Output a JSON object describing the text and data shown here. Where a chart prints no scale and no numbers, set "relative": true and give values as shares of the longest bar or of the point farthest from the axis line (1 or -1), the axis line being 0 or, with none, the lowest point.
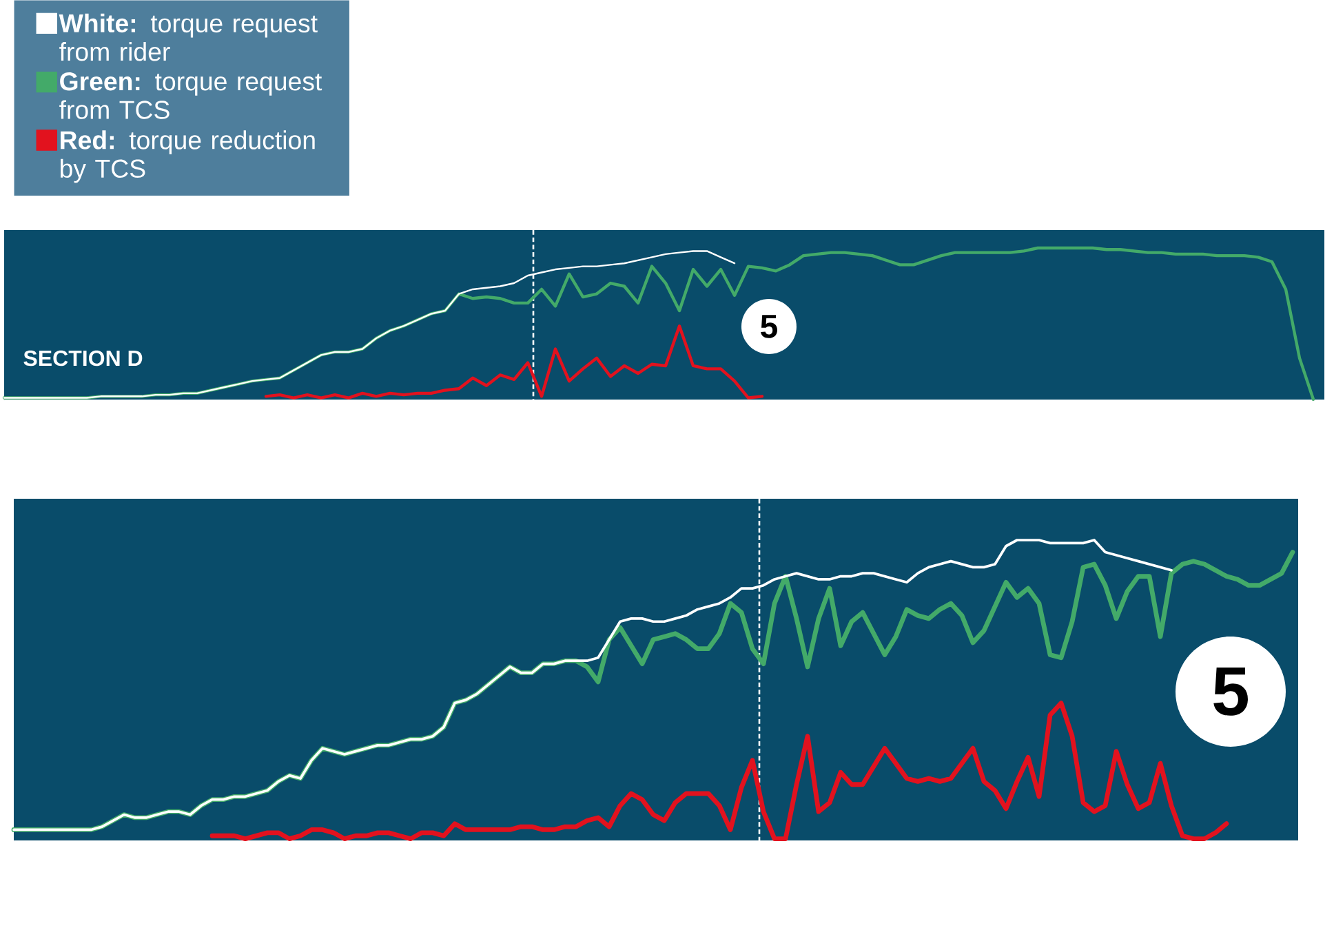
{
  "chart_data": [
    {
      "type": "line",
      "title": "SECTION D",
      "relative": true,
      "legend": "top left",
      "categories": [
        null,
        null,
        null,
        null,
        null,
        null,
        null,
        null,
        null,
        null,
        null,
        null,
        null,
        null,
        null,
        null,
        null,
        null,
        null,
        null,
        null,
        null,
        null,
        null,
        null,
        null,
        null,
        null,
        null,
        null,
        null,
        null,
        null,
        null,
        null,
        null,
        null,
        null,
        null,
        null,
        null,
        null,
        null,
        null,
        null,
        null,
        null,
        null,
        null,
        null,
        null,
        null,
        null,
        null,
        null,
        null,
        null,
        null,
        null,
        null,
        null,
        null,
        null,
        null,
        null,
        null,
        null,
        null,
        null,
        null,
        null,
        null,
        null,
        null,
        null,
        null,
        null,
        null,
        null,
        null,
        null,
        null,
        null,
        null,
        null,
        null,
        null,
        null,
        null,
        null,
        null,
        null,
        null,
        null,
        null,
        null
      ],
      "series": [
        {
          "name": "**White:** torque request from rider",
          "color": "#ffffff",
          "values": [
            0.02,
            0.02,
            0.02,
            0.02,
            0.02,
            0.02,
            0.02,
            0.03,
            0.03,
            0.03,
            0.03,
            0.04,
            0.04,
            0.05,
            0.05,
            0.07,
            0.09,
            0.11,
            0.13,
            0.14,
            0.15,
            0.2,
            0.25,
            0.3,
            0.32,
            0.32,
            0.34,
            0.41,
            0.46,
            0.49,
            0.53,
            0.57,
            0.59,
            0.7,
            0.73,
            0.74,
            0.75,
            0.77,
            0.82,
            0.84,
            0.86,
            0.87,
            0.88,
            0.88,
            0.89,
            0.9,
            0.92,
            0.94,
            0.96,
            0.97,
            0.98,
            0.98,
            0.94,
            0.9,
            null,
            null,
            null,
            null,
            null,
            null,
            null,
            null,
            null,
            null,
            null,
            null,
            null,
            null,
            null,
            null,
            null,
            null,
            null,
            null,
            null,
            null,
            null,
            null,
            null,
            null,
            null,
            null,
            null,
            null,
            null,
            null,
            null,
            null,
            null,
            null,
            null,
            null,
            null,
            null,
            null,
            null
          ]
        },
        {
          "name": "**Green:** torque request from TCS",
          "color": "#43aa69",
          "values": [
            0.02,
            0.02,
            0.02,
            0.02,
            0.02,
            0.02,
            0.02,
            0.03,
            0.03,
            0.03,
            0.03,
            0.04,
            0.04,
            0.05,
            0.05,
            0.07,
            0.09,
            0.11,
            0.13,
            0.14,
            0.15,
            0.2,
            0.25,
            0.3,
            0.32,
            0.32,
            0.34,
            0.41,
            0.46,
            0.49,
            0.53,
            0.57,
            0.59,
            0.7,
            0.67,
            0.68,
            0.67,
            0.64,
            0.64,
            0.73,
            0.62,
            0.83,
            0.68,
            0.7,
            0.77,
            0.75,
            0.64,
            0.88,
            0.77,
            0.59,
            0.86,
            0.75,
            0.86,
            0.69,
            0.88,
            0.87,
            0.85,
            0.89,
            0.95,
            0.96,
            0.97,
            0.97,
            0.96,
            0.95,
            0.92,
            0.89,
            0.89,
            0.92,
            0.95,
            0.97,
            0.97,
            0.97,
            0.97,
            0.97,
            0.98,
            1.0,
            1.0,
            1.0,
            1.0,
            1.0,
            0.99,
            0.99,
            0.98,
            0.97,
            0.97,
            0.96,
            0.96,
            0.96,
            0.95,
            0.95,
            0.95,
            0.94,
            0.91,
            0.73,
            0.28,
            0.01
          ]
        },
        {
          "name": "**Red:** torque reduction by TCS",
          "color": "#e2121e",
          "values": [
            null,
            null,
            null,
            null,
            null,
            null,
            null,
            null,
            null,
            null,
            null,
            null,
            null,
            null,
            null,
            null,
            null,
            null,
            null,
            0.03,
            0.04,
            0.02,
            0.04,
            0.02,
            0.04,
            0.02,
            0.05,
            0.03,
            0.05,
            0.04,
            0.05,
            0.05,
            0.07,
            0.08,
            0.15,
            0.1,
            0.17,
            0.14,
            0.25,
            0.03,
            0.34,
            0.13,
            0.21,
            0.28,
            0.16,
            0.23,
            0.18,
            0.24,
            0.23,
            0.49,
            0.23,
            0.21,
            0.21,
            0.13,
            0.02,
            0.03,
            null,
            null,
            null,
            null,
            null,
            null,
            null,
            null,
            null,
            null,
            null,
            null,
            null,
            null,
            null,
            null,
            null,
            null,
            null,
            null,
            null,
            null,
            null,
            null,
            null,
            null,
            null,
            null,
            null,
            null,
            null,
            null,
            null,
            null,
            null,
            null,
            null,
            null,
            null,
            null
          ]
        }
      ],
      "annotations": [
        "5"
      ]
    },
    {
      "type": "line",
      "relative": true,
      "categories": [
        null,
        null,
        null,
        null,
        null,
        null,
        null,
        null,
        null,
        null,
        null,
        null,
        null,
        null,
        null,
        null,
        null,
        null,
        null,
        null,
        null,
        null,
        null,
        null,
        null,
        null,
        null,
        null,
        null,
        null,
        null,
        null,
        null,
        null,
        null,
        null,
        null,
        null,
        null,
        null,
        null,
        null,
        null,
        null,
        null,
        null,
        null,
        null,
        null,
        null,
        null,
        null,
        null,
        null,
        null,
        null,
        null,
        null,
        null,
        null,
        null,
        null,
        null,
        null,
        null,
        null,
        null,
        null,
        null,
        null,
        null,
        null,
        null,
        null,
        null,
        null,
        null,
        null,
        null,
        null,
        null,
        null,
        null,
        null,
        null,
        null,
        null,
        null,
        null,
        null,
        null,
        null,
        null,
        null,
        null,
        null,
        null,
        null,
        null,
        null,
        null,
        null,
        null,
        null,
        null,
        null,
        null,
        null,
        null,
        null,
        null,
        null,
        null,
        null,
        null,
        null,
        null
      ],
      "series": [
        {
          "color": "#ffffff",
          "values": [
            0.04,
            0.04,
            0.04,
            0.04,
            0.04,
            0.04,
            0.04,
            0.04,
            0.05,
            0.07,
            0.09,
            0.08,
            0.08,
            0.09,
            0.1,
            0.1,
            0.09,
            0.12,
            0.14,
            0.14,
            0.15,
            0.15,
            0.16,
            0.17,
            0.2,
            0.22,
            0.21,
            0.27,
            0.31,
            0.3,
            0.29,
            0.3,
            0.31,
            0.32,
            0.32,
            0.33,
            0.34,
            0.34,
            0.35,
            0.38,
            0.46,
            0.47,
            0.49,
            0.52,
            0.55,
            0.58,
            0.56,
            0.56,
            0.59,
            0.59,
            0.6,
            0.6,
            0.6,
            0.61,
            0.67,
            0.73,
            0.74,
            0.74,
            0.73,
            0.73,
            0.74,
            0.75,
            0.77,
            0.78,
            0.79,
            0.81,
            0.84,
            0.84,
            0.85,
            0.87,
            0.88,
            0.89,
            0.88,
            0.87,
            0.87,
            0.88,
            0.88,
            0.89,
            0.89,
            0.88,
            0.87,
            0.86,
            0.89,
            0.91,
            0.92,
            0.93,
            0.92,
            0.91,
            0.91,
            0.92,
            0.98,
            1.0,
            1.0,
            1.0,
            0.99,
            0.99,
            0.99,
            0.99,
            1.0,
            0.96,
            0.95,
            0.94,
            0.93,
            0.92,
            0.91,
            0.9,
            null,
            null,
            null,
            null,
            null,
            null,
            null,
            null,
            null,
            null,
            null
          ]
        },
        {
          "color": "#43aa69",
          "values": [
            0.04,
            0.04,
            0.04,
            0.04,
            0.04,
            0.04,
            0.04,
            0.04,
            0.05,
            0.07,
            0.09,
            0.08,
            0.08,
            0.09,
            0.1,
            0.1,
            0.09,
            0.12,
            0.14,
            0.14,
            0.15,
            0.15,
            0.16,
            0.17,
            0.2,
            0.22,
            0.21,
            0.27,
            0.31,
            0.3,
            0.29,
            0.3,
            0.31,
            0.32,
            0.32,
            0.33,
            0.34,
            0.34,
            0.35,
            0.38,
            0.46,
            0.47,
            0.49,
            0.52,
            0.55,
            0.58,
            0.56,
            0.56,
            0.59,
            0.59,
            0.6,
            0.6,
            0.58,
            0.53,
            0.67,
            0.71,
            0.65,
            0.59,
            0.67,
            0.68,
            0.69,
            0.67,
            0.64,
            0.64,
            0.69,
            0.79,
            0.76,
            0.64,
            0.59,
            0.79,
            0.88,
            0.74,
            0.58,
            0.74,
            0.84,
            0.65,
            0.73,
            0.76,
            0.69,
            0.62,
            0.68,
            0.77,
            0.75,
            0.74,
            0.77,
            0.79,
            0.75,
            0.66,
            0.7,
            0.78,
            0.86,
            0.81,
            0.84,
            0.79,
            0.62,
            0.61,
            0.73,
            0.91,
            0.92,
            0.85,
            0.74,
            0.83,
            0.88,
            0.88,
            0.68,
            0.89,
            0.92,
            0.93,
            0.92,
            0.9,
            0.88,
            0.87,
            0.85,
            0.85,
            0.87,
            0.89,
            0.96
          ]
        },
        {
          "color": "#e2121e",
          "values": [
            null,
            null,
            null,
            null,
            null,
            null,
            null,
            null,
            null,
            null,
            null,
            null,
            null,
            null,
            null,
            null,
            null,
            null,
            0.02,
            0.02,
            0.02,
            0.01,
            0.02,
            0.03,
            0.03,
            0.01,
            0.02,
            0.04,
            0.04,
            0.03,
            0.01,
            0.02,
            0.02,
            0.03,
            0.03,
            0.02,
            0.01,
            0.03,
            0.03,
            0.02,
            0.06,
            0.04,
            0.04,
            0.04,
            0.04,
            0.04,
            0.05,
            0.05,
            0.04,
            0.04,
            0.05,
            0.05,
            0.07,
            0.08,
            0.05,
            0.12,
            0.16,
            0.14,
            0.09,
            0.07,
            0.13,
            0.16,
            0.16,
            0.16,
            0.12,
            0.04,
            0.18,
            0.27,
            0.1,
            0.01,
            0.01,
            0.19,
            0.35,
            0.1,
            0.13,
            0.23,
            0.19,
            0.19,
            0.25,
            0.31,
            0.26,
            0.21,
            0.2,
            0.21,
            0.2,
            0.21,
            0.26,
            0.31,
            0.2,
            0.17,
            0.11,
            0.2,
            0.28,
            0.15,
            0.42,
            0.46,
            0.35,
            0.13,
            0.1,
            0.12,
            0.3,
            0.19,
            0.11,
            0.13,
            0.26,
            0.12,
            0.02,
            0.01,
            0.01,
            0.03,
            0.06,
            null,
            null,
            null,
            null,
            null,
            null
          ]
        }
      ],
      "annotations": [
        "5"
      ]
    }
  ]
}
